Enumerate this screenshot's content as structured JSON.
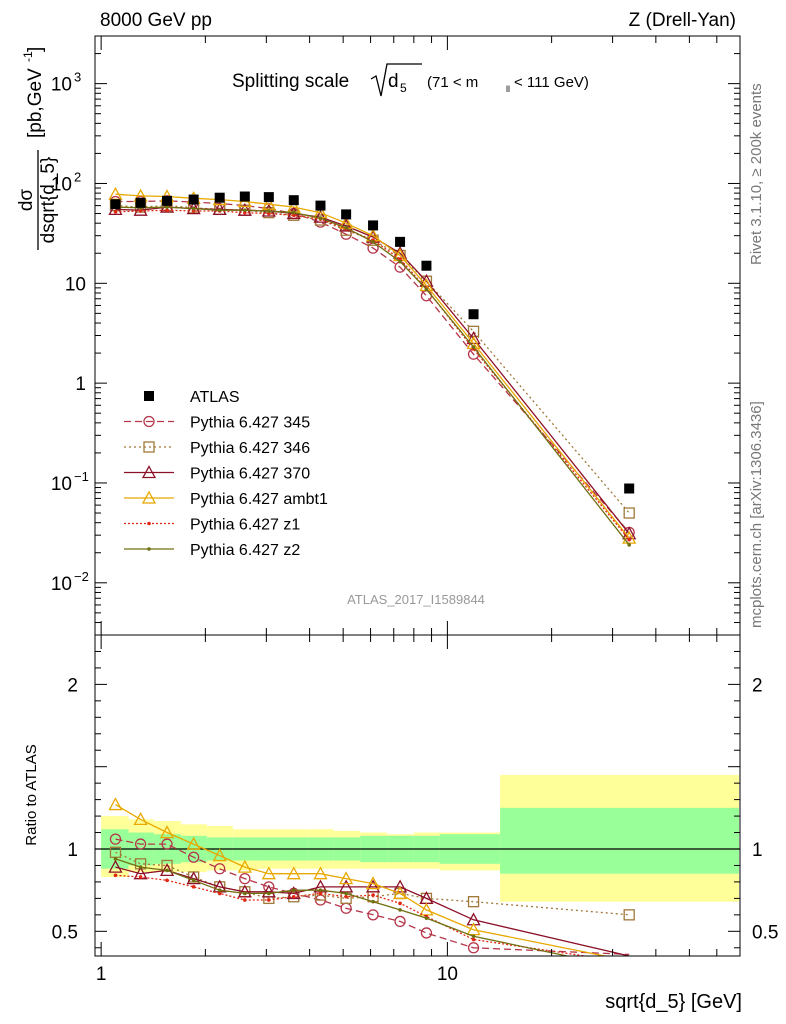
{
  "header": {
    "left": "8000 GeV pp",
    "right": "Z (Drell-Yan)"
  },
  "side_labels": {
    "top": "Rivet 3.1.10, ≥ 200k events",
    "bottom": "mcplots.cern.ch [arXiv:1306.3436]"
  },
  "analysis_id": "ATLAS_2017_I1589844",
  "chart_data": [
    {
      "type": "scatter",
      "panel": "main",
      "title": "Splitting scale √d₅ (71 < m_ll < 111 GeV)",
      "title_parts": {
        "main": "Splitting scale",
        "sub": "5",
        "d": "d",
        "range": "(71 < m",
        "range_sub": "ll",
        "range_end": " < 111 GeV)"
      },
      "ylabel_parts": {
        "num": "dσ",
        "den": "dsqrt{d_5}",
        "unit": "[pb,GeV",
        "unit_exp": "-1",
        "unit_end": "]"
      },
      "xlabel": "sqrt{d_5} [GeV]",
      "xscale": "log",
      "yscale": "log",
      "xlim": [
        0.96,
        70
      ],
      "ylim": [
        0.003,
        3000
      ],
      "yticks": [
        {
          "value": 1000,
          "base": "10",
          "exp": "3"
        },
        {
          "value": 100,
          "base": "10",
          "exp": "2"
        },
        {
          "value": 10,
          "base": "10",
          "exp": ""
        },
        {
          "value": 1,
          "base": "1",
          "exp": ""
        },
        {
          "value": 0.1,
          "base": "10",
          "exp": "−1"
        },
        {
          "value": 0.01,
          "base": "10",
          "exp": "−2"
        }
      ],
      "x": [
        1.1,
        1.3,
        1.55,
        1.85,
        2.2,
        2.6,
        3.05,
        3.6,
        4.3,
        5.1,
        6.1,
        7.3,
        8.7,
        11.9,
        33.5
      ],
      "atlas": [
        62,
        64,
        67,
        69,
        72,
        74,
        73,
        68,
        60,
        49,
        38,
        26,
        15,
        4.9,
        0.088
      ],
      "series": [
        {
          "name": "Pythia 6.427 345",
          "color": "#b5364a",
          "dash": "7,4",
          "marker": "circle",
          "values": [
            66,
            66,
            67,
            65,
            63,
            60,
            56,
            50,
            41,
            31,
            22.5,
            14.5,
            7.5,
            1.95,
            0.032
          ]
        },
        {
          "name": "Pythia 6.427 346",
          "color": "#a07838",
          "dash": "2,3",
          "marker": "square",
          "values": [
            60,
            58,
            60,
            57,
            55,
            54,
            51,
            48,
            43,
            34,
            27,
            19,
            10.5,
            3.3,
            0.05
          ]
        },
        {
          "name": "Pythia 6.427 370",
          "color": "#8c1028",
          "dash": "",
          "marker": "triangle",
          "values": [
            55,
            54,
            58,
            56,
            55,
            54,
            53,
            50,
            46,
            37.5,
            29,
            20,
            10.5,
            2.8,
            0.031
          ]
        },
        {
          "name": "Pythia 6.427 ambt1",
          "color": "#e8a800",
          "dash": "",
          "marker": "triangle",
          "values": [
            78,
            75,
            74,
            71,
            69,
            66,
            62,
            58,
            51,
            40,
            30,
            19,
            9.5,
            2.5,
            0.028
          ]
        },
        {
          "name": "Pythia 6.427 z1",
          "color": "#e02814",
          "dash": "2,2",
          "marker": "dot",
          "values": [
            52,
            53,
            54,
            53,
            53,
            51,
            50,
            48,
            44,
            35,
            27,
            17.5,
            8.8,
            2.2,
            0.027
          ]
        },
        {
          "name": "Pythia 6.427 z2",
          "color": "#707010",
          "dash": "",
          "marker": "dot",
          "values": [
            58,
            57,
            58,
            56,
            54,
            54,
            53,
            51,
            45,
            36,
            26,
            16.5,
            8.7,
            2.3,
            0.024
          ]
        }
      ]
    },
    {
      "type": "band",
      "panel": "ratio",
      "ylabel": "Ratio to ATLAS",
      "xscale": "log",
      "ylim": [
        0.35,
        2.3
      ],
      "yticks": [
        {
          "value": 2,
          "label": "2"
        },
        {
          "value": 1,
          "label": "1"
        },
        {
          "value": 0.5,
          "label": "0.5"
        }
      ],
      "xticks": [
        {
          "value": 1,
          "label": "1"
        },
        {
          "value": 10,
          "label": "10"
        }
      ],
      "band_edges": [
        1,
        1.2,
        1.42,
        1.7,
        2.02,
        2.4,
        2.83,
        3.33,
        3.95,
        4.7,
        5.6,
        6.7,
        8.0,
        9.5,
        14.2,
        70
      ],
      "band_inner": [
        [
          0.88,
          1.12
        ],
        [
          0.9,
          1.1
        ],
        [
          0.91,
          1.09
        ],
        [
          0.92,
          1.08
        ],
        [
          0.93,
          1.07
        ],
        [
          0.93,
          1.07
        ],
        [
          0.93,
          1.07
        ],
        [
          0.93,
          1.07
        ],
        [
          0.93,
          1.07
        ],
        [
          0.93,
          1.07
        ],
        [
          0.92,
          1.08
        ],
        [
          0.92,
          1.08
        ],
        [
          0.92,
          1.08
        ],
        [
          0.91,
          1.09
        ],
        [
          0.85,
          1.25
        ]
      ],
      "band_outer": [
        [
          0.83,
          1.2
        ],
        [
          0.86,
          1.18
        ],
        [
          0.86,
          1.17
        ],
        [
          0.86,
          1.15
        ],
        [
          0.87,
          1.14
        ],
        [
          0.87,
          1.12
        ],
        [
          0.88,
          1.12
        ],
        [
          0.88,
          1.12
        ],
        [
          0.88,
          1.12
        ],
        [
          0.88,
          1.11
        ],
        [
          0.88,
          1.1
        ],
        [
          0.88,
          1.09
        ],
        [
          0.88,
          1.1
        ],
        [
          0.87,
          1.1
        ],
        [
          0.68,
          1.45
        ]
      ],
      "series_ratio": [
        [
          1.06,
          1.03,
          1.03,
          0.95,
          0.88,
          0.82,
          0.77,
          0.73,
          0.69,
          0.64,
          0.6,
          0.56,
          0.49,
          0.4,
          0.36
        ],
        [
          0.98,
          0.91,
          0.9,
          0.83,
          0.77,
          0.74,
          0.7,
          0.71,
          0.72,
          0.7,
          0.71,
          0.73,
          0.7,
          0.68,
          0.6
        ],
        [
          0.89,
          0.85,
          0.87,
          0.82,
          0.77,
          0.74,
          0.74,
          0.73,
          0.77,
          0.77,
          0.77,
          0.77,
          0.7,
          0.57,
          0.35
        ],
        [
          1.27,
          1.18,
          1.1,
          1.03,
          0.96,
          0.89,
          0.85,
          0.85,
          0.85,
          0.82,
          0.79,
          0.73,
          0.63,
          0.51,
          0.32
        ],
        [
          0.84,
          0.83,
          0.81,
          0.77,
          0.73,
          0.69,
          0.69,
          0.71,
          0.73,
          0.71,
          0.72,
          0.67,
          0.59,
          0.45,
          0.31
        ],
        [
          0.94,
          0.89,
          0.87,
          0.81,
          0.75,
          0.73,
          0.73,
          0.75,
          0.75,
          0.73,
          0.68,
          0.63,
          0.58,
          0.47,
          0.27
        ]
      ]
    }
  ]
}
